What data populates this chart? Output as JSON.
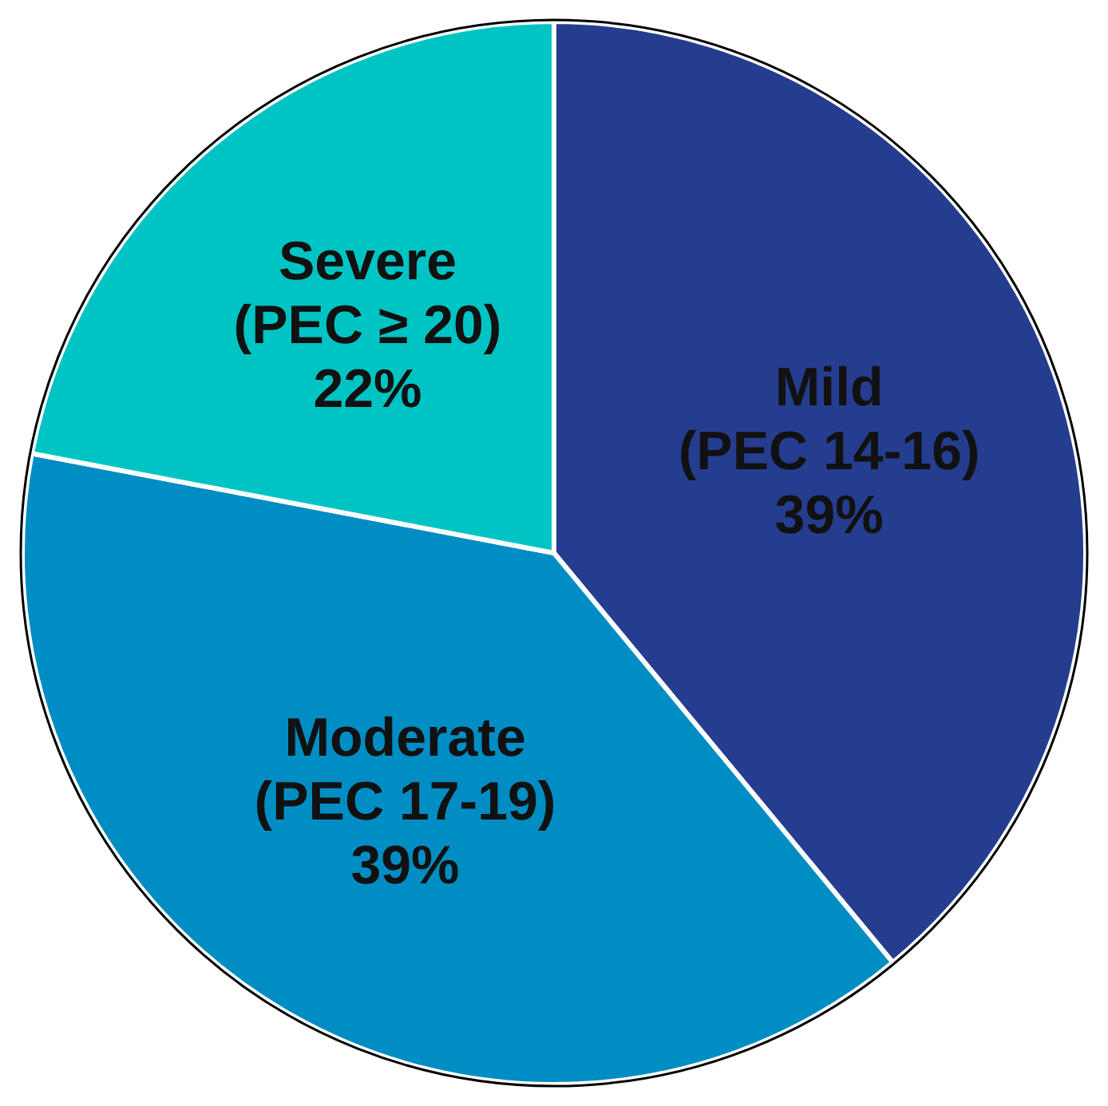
{
  "chart_data": {
    "type": "pie",
    "categories": [
      "Mild (PEC 14-16)",
      "Moderate (PEC 17-19)",
      "Severe (PEC ≥ 20)"
    ],
    "values": [
      39,
      39,
      22
    ],
    "colors": [
      "#253d8f",
      "#008dc4",
      "#00c4c4"
    ],
    "value_labels": [
      "39%",
      "39%",
      "22%"
    ],
    "legend": false
  }
}
